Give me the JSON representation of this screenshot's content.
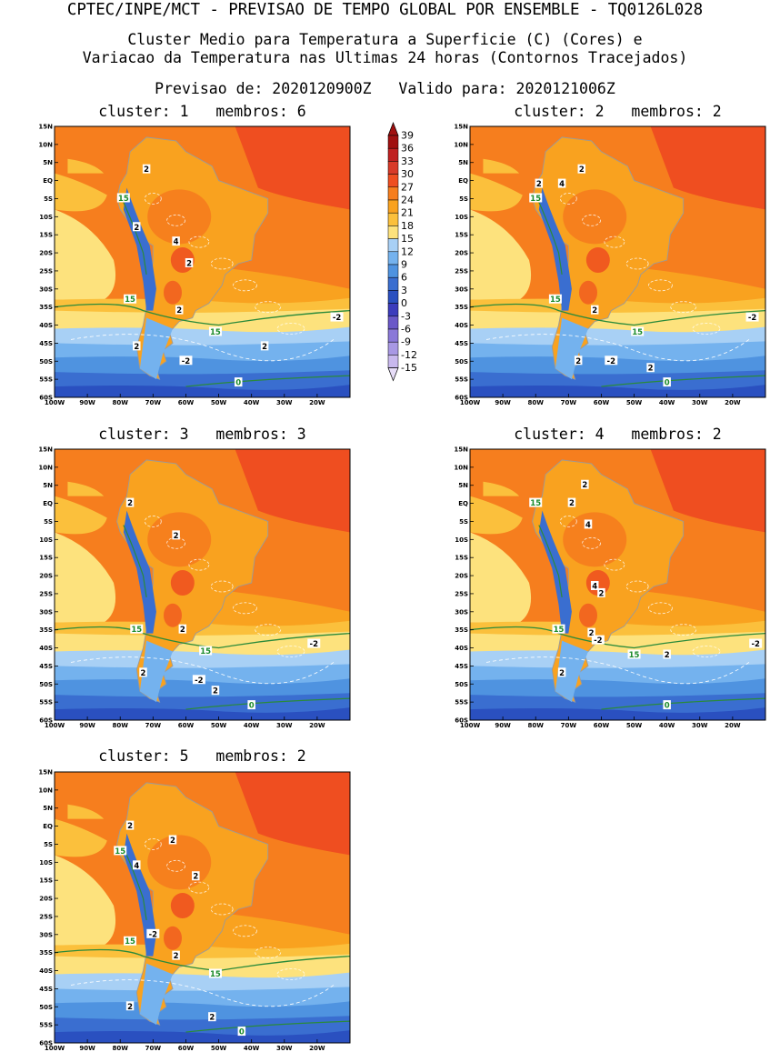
{
  "header": {
    "line1": "CPTEC/INPE/MCT - PREVISAO DE TEMPO GLOBAL POR ENSEMBLE - TQ0126L028",
    "line2": "Cluster Medio para Temperatura a Superficie (C) (Cores) e",
    "line3": "Variacao da Temperatura nas Ultimas 24 horas (Contornos Tracejados)",
    "line4": "Previsao de: 2020120900Z   Valido para: 2020121006Z"
  },
  "map_axes": {
    "lat_labels": [
      "15N",
      "10N",
      "5N",
      "EQ",
      "5S",
      "10S",
      "15S",
      "20S",
      "25S",
      "30S",
      "35S",
      "40S",
      "45S",
      "50S",
      "55S",
      "60S"
    ],
    "lon_labels": [
      "100W",
      "90W",
      "80W",
      "70W",
      "60W",
      "50W",
      "40W",
      "30W",
      "20W"
    ]
  },
  "colorbar": {
    "levels": [
      "39",
      "36",
      "33",
      "30",
      "27",
      "24",
      "21",
      "18",
      "15",
      "12",
      "9",
      "6",
      "3",
      "0",
      "-3",
      "-6",
      "-9",
      "-12",
      "-15"
    ],
    "colors": [
      "#a01010",
      "#c02020",
      "#d83a28",
      "#ef4e20",
      "#f67e1e",
      "#f9a21f",
      "#fbc03c",
      "#fde27d",
      "#a8d0f5",
      "#74b2ee",
      "#4f93e0",
      "#3a6ed0",
      "#2a50c0",
      "#3c3cbc",
      "#6a58c8",
      "#8a78d8",
      "#a898e4",
      "#c8b8ee",
      "#e6dcf7"
    ]
  },
  "panels": [
    {
      "title": "cluster: 1   membros: 6",
      "labels": [
        {
          "t": "2",
          "x": -72,
          "y": 3
        },
        {
          "t": "15",
          "x": -79,
          "y": -5
        },
        {
          "t": "2",
          "x": -75,
          "y": -13
        },
        {
          "t": "4",
          "x": -63,
          "y": -17
        },
        {
          "t": "2",
          "x": -59,
          "y": -23
        },
        {
          "t": "15",
          "x": -77,
          "y": -33
        },
        {
          "t": "2",
          "x": -62,
          "y": -36
        },
        {
          "t": "15",
          "x": -51,
          "y": -42
        },
        {
          "t": "2",
          "x": -75,
          "y": -46
        },
        {
          "t": "-2",
          "x": -60,
          "y": -50
        },
        {
          "t": "2",
          "x": -36,
          "y": -46
        },
        {
          "t": "-2",
          "x": -14,
          "y": -38
        },
        {
          "t": "0",
          "x": -44,
          "y": -56
        }
      ]
    },
    {
      "title": "cluster: 2   membros: 2",
      "labels": [
        {
          "t": "2",
          "x": -66,
          "y": 3
        },
        {
          "t": "2",
          "x": -79,
          "y": -1
        },
        {
          "t": "4",
          "x": -72,
          "y": -1
        },
        {
          "t": "15",
          "x": -80,
          "y": -5
        },
        {
          "t": "15",
          "x": -74,
          "y": -33
        },
        {
          "t": "2",
          "x": -62,
          "y": -36
        },
        {
          "t": "15",
          "x": -49,
          "y": -42
        },
        {
          "t": "2",
          "x": -67,
          "y": -50
        },
        {
          "t": "-2",
          "x": -57,
          "y": -50
        },
        {
          "t": "2",
          "x": -45,
          "y": -52
        },
        {
          "t": "0",
          "x": -40,
          "y": -56
        },
        {
          "t": "-2",
          "x": -14,
          "y": -38
        }
      ]
    },
    {
      "title": "cluster: 3   membros: 3",
      "labels": [
        {
          "t": "2",
          "x": -77,
          "y": 0
        },
        {
          "t": "2",
          "x": -63,
          "y": -9
        },
        {
          "t": "15",
          "x": -75,
          "y": -35
        },
        {
          "t": "2",
          "x": -61,
          "y": -35
        },
        {
          "t": "15",
          "x": -54,
          "y": -41
        },
        {
          "t": "-2",
          "x": -21,
          "y": -39
        },
        {
          "t": "2",
          "x": -73,
          "y": -47
        },
        {
          "t": "-2",
          "x": -56,
          "y": -49
        },
        {
          "t": "2",
          "x": -51,
          "y": -52
        },
        {
          "t": "0",
          "x": -40,
          "y": -56
        }
      ]
    },
    {
      "title": "cluster: 4   membros: 2",
      "labels": [
        {
          "t": "2",
          "x": -65,
          "y": 5
        },
        {
          "t": "15",
          "x": -80,
          "y": 0
        },
        {
          "t": "2",
          "x": -69,
          "y": 0
        },
        {
          "t": "4",
          "x": -64,
          "y": -6
        },
        {
          "t": "4",
          "x": -62,
          "y": -23
        },
        {
          "t": "2",
          "x": -60,
          "y": -25
        },
        {
          "t": "15",
          "x": -73,
          "y": -35
        },
        {
          "t": "2",
          "x": -63,
          "y": -36
        },
        {
          "t": "-2",
          "x": -61,
          "y": -38
        },
        {
          "t": "15",
          "x": -50,
          "y": -42
        },
        {
          "t": "2",
          "x": -40,
          "y": -42
        },
        {
          "t": "-2",
          "x": -13,
          "y": -39
        },
        {
          "t": "2",
          "x": -72,
          "y": -47
        },
        {
          "t": "0",
          "x": -40,
          "y": -56
        }
      ]
    },
    {
      "title": "cluster: 5   membros: 2",
      "labels": [
        {
          "t": "2",
          "x": -77,
          "y": 0
        },
        {
          "t": "2",
          "x": -64,
          "y": -4
        },
        {
          "t": "15",
          "x": -80,
          "y": -7
        },
        {
          "t": "4",
          "x": -75,
          "y": -11
        },
        {
          "t": "2",
          "x": -57,
          "y": -14
        },
        {
          "t": "-2",
          "x": -70,
          "y": -30
        },
        {
          "t": "15",
          "x": -77,
          "y": -32
        },
        {
          "t": "2",
          "x": -63,
          "y": -36
        },
        {
          "t": "15",
          "x": -51,
          "y": -41
        },
        {
          "t": "2",
          "x": -77,
          "y": -50
        },
        {
          "t": "2",
          "x": -52,
          "y": -53
        },
        {
          "t": "0",
          "x": -43,
          "y": -57
        }
      ]
    }
  ]
}
